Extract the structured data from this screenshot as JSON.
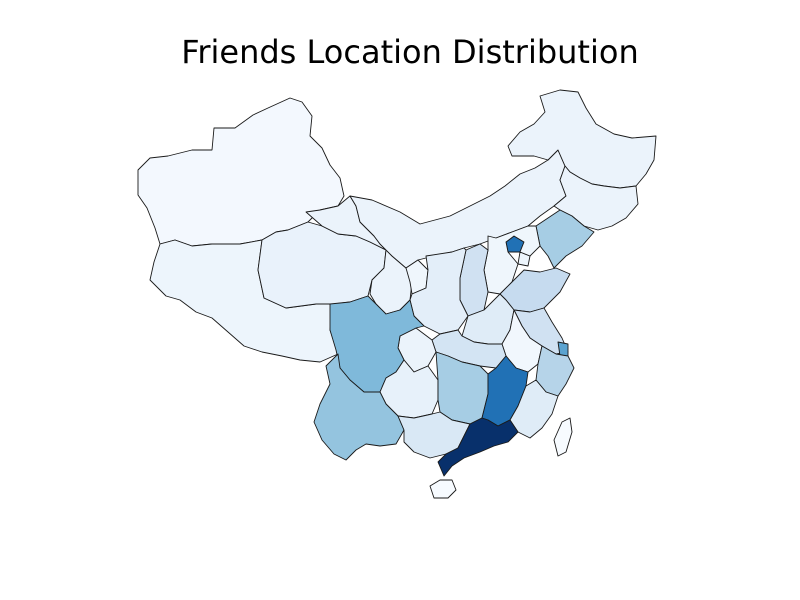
{
  "chart_data": {
    "type": "choropleth",
    "title": "Friends Location Distribution",
    "colormap": "Blues",
    "value_scale": "relative intensity (0 = none, 1 = most friends)",
    "regions": [
      {
        "name": "Xinjiang",
        "value": 0.02
      },
      {
        "name": "Tibet",
        "value": 0.05
      },
      {
        "name": "Qinghai",
        "value": 0.07
      },
      {
        "name": "Gansu",
        "value": 0.06
      },
      {
        "name": "Inner Mongolia",
        "value": 0.06
      },
      {
        "name": "Heilongjiang",
        "value": 0.06
      },
      {
        "name": "Jilin",
        "value": 0.06
      },
      {
        "name": "Liaoning",
        "value": 0.35
      },
      {
        "name": "Beijing",
        "value": 0.75
      },
      {
        "name": "Tianjin",
        "value": 0.05
      },
      {
        "name": "Hebei",
        "value": 0.04
      },
      {
        "name": "Shanxi",
        "value": 0.2
      },
      {
        "name": "Shandong",
        "value": 0.25
      },
      {
        "name": "Ningxia",
        "value": 0.04
      },
      {
        "name": "Shaanxi",
        "value": 0.1
      },
      {
        "name": "Henan",
        "value": 0.12
      },
      {
        "name": "Jiangsu",
        "value": 0.2
      },
      {
        "name": "Anhui",
        "value": 0.03
      },
      {
        "name": "Shanghai",
        "value": 0.55
      },
      {
        "name": "Zhejiang",
        "value": 0.3
      },
      {
        "name": "Hubei",
        "value": 0.18
      },
      {
        "name": "Chongqing",
        "value": 0.06
      },
      {
        "name": "Sichuan",
        "value": 0.45
      },
      {
        "name": "Guizhou",
        "value": 0.08
      },
      {
        "name": "Yunnan",
        "value": 0.4
      },
      {
        "name": "Hunan",
        "value": 0.35
      },
      {
        "name": "Jiangxi",
        "value": 0.75
      },
      {
        "name": "Fujian",
        "value": 0.12
      },
      {
        "name": "Guangxi",
        "value": 0.15
      },
      {
        "name": "Guangdong",
        "value": 1.0
      },
      {
        "name": "Hainan",
        "value": 0.0
      },
      {
        "name": "Taiwan",
        "value": 0.0
      }
    ]
  }
}
